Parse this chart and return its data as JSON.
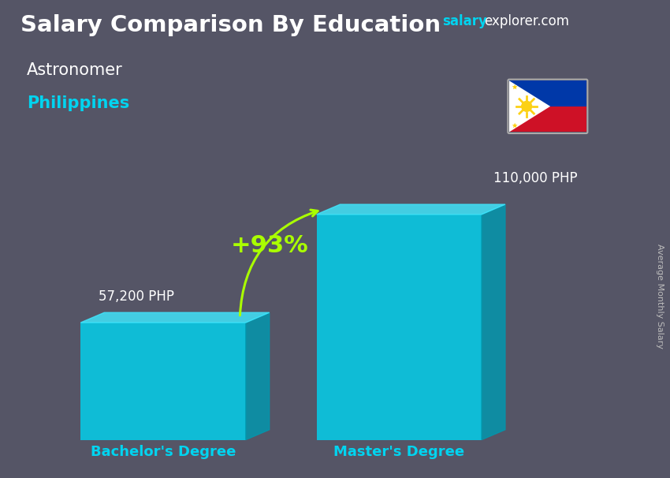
{
  "title": "Salary Comparison By Education",
  "subtitle_job": "Astronomer",
  "subtitle_country": "Philippines",
  "ylabel_rotated": "Average Monthly Salary",
  "categories": [
    "Bachelor's Degree",
    "Master's Degree"
  ],
  "values": [
    57200,
    110000
  ],
  "value_labels": [
    "57,200 PHP",
    "110,000 PHP"
  ],
  "percent_label": "+93%",
  "bar_color_face": "#00d4f0",
  "bar_color_top": "#40e8ff",
  "bar_color_side": "#0099b0",
  "bar_alpha": 0.82,
  "bg_color": "#555566",
  "title_color": "#ffffff",
  "subtitle_job_color": "#ffffff",
  "subtitle_country_color": "#00d4f0",
  "value_label_color": "#ffffff",
  "xlabel_color": "#00d4f0",
  "brand_salary_color": "#00d4f0",
  "brand_rest_color": "#ffffff",
  "percent_color": "#aaff00",
  "arrow_color": "#aaff00",
  "ylabel_color": "#bbbbbb",
  "ylim": [
    0,
    140000
  ],
  "figsize": [
    8.5,
    6.06
  ],
  "dpi": 100
}
